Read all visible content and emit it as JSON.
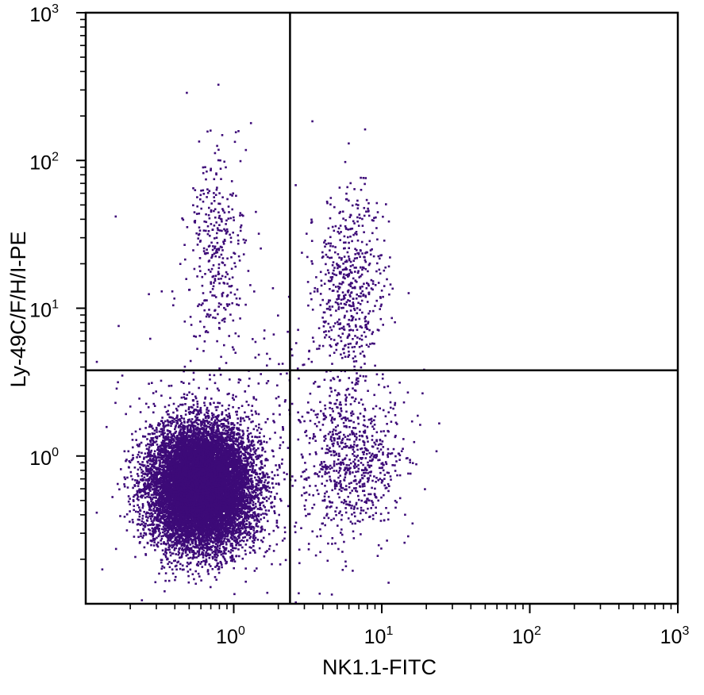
{
  "chart_data": {
    "type": "scatter",
    "title": "",
    "xlabel": "NK1.1-FITC",
    "ylabel": "Ly-49C/F/H/I-PE",
    "xscale": "log",
    "yscale": "log",
    "xlim": [
      0.1,
      1000
    ],
    "ylim": [
      0.1,
      1000
    ],
    "grid": false,
    "legend": "none",
    "x_ticks": [
      {
        "base": "10",
        "exp": "0",
        "value": 1
      },
      {
        "base": "10",
        "exp": "1",
        "value": 10
      },
      {
        "base": "10",
        "exp": "2",
        "value": 100
      },
      {
        "base": "10",
        "exp": "3",
        "value": 1000
      }
    ],
    "y_ticks": [
      {
        "base": "10",
        "exp": "0",
        "value": 1
      },
      {
        "base": "10",
        "exp": "1",
        "value": 10
      },
      {
        "base": "10",
        "exp": "2",
        "value": 100
      },
      {
        "base": "10",
        "exp": "3",
        "value": 1000
      }
    ],
    "quadrant_gate": {
      "x": 2.4,
      "y": 3.8
    },
    "point_color": "#3d0a78",
    "clusters": [
      {
        "x_center": 0.6,
        "y_center": 0.62,
        "x_spread_log": 0.17,
        "y_spread_log": 0.2,
        "count": 14000
      },
      {
        "x_center": 0.75,
        "y_center": 25,
        "x_spread_log": 0.1,
        "y_spread_log": 0.35,
        "count": 330
      },
      {
        "x_center": 6.3,
        "y_center": 0.9,
        "x_spread_log": 0.17,
        "y_spread_log": 0.28,
        "count": 750
      },
      {
        "x_center": 6.0,
        "y_center": 14,
        "x_spread_log": 0.12,
        "y_spread_log": 0.33,
        "count": 550
      },
      {
        "x_center": 1.2,
        "y_center": 1.4,
        "x_spread_log": 0.45,
        "y_spread_log": 0.55,
        "count": 350
      }
    ]
  }
}
